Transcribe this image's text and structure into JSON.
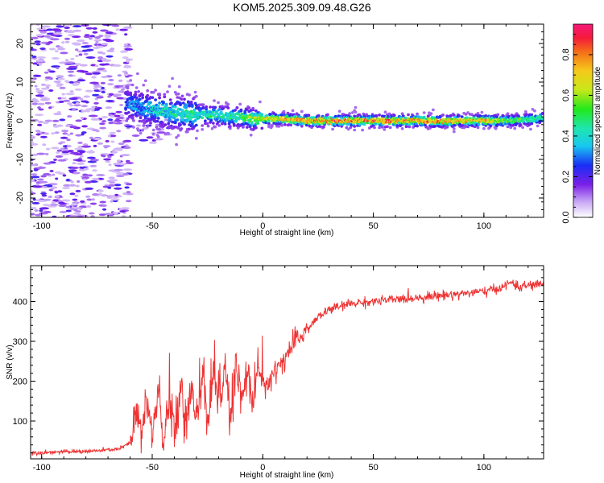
{
  "title": "KOM5.2025.309.09.48.G26",
  "chart_data": [
    {
      "type": "heatmap",
      "xlabel": "Height of straight line (km)",
      "ylabel": "Frequency (Hz)",
      "xlim": [
        -105,
        127
      ],
      "ylim": [
        -25,
        25
      ],
      "xticks": [
        -100,
        -50,
        0,
        50,
        100
      ],
      "yticks": [
        -20,
        -10,
        0,
        10,
        20
      ],
      "xtick_labels": [
        "-100",
        "-50",
        "0",
        "50",
        "100"
      ],
      "ytick_labels": [
        "-20",
        "-10",
        "0",
        "10",
        "20"
      ],
      "ridge": {
        "x": [
          -62,
          -55,
          -50,
          -45,
          -40,
          -35,
          -30,
          -25,
          -20,
          -15,
          -10,
          -5,
          0,
          5,
          10,
          20,
          30,
          40,
          50,
          60,
          70,
          80,
          90,
          100,
          110,
          120,
          127
        ],
        "freq": [
          4.5,
          3.5,
          3.0,
          2.5,
          2.0,
          2.0,
          1.5,
          1.5,
          1.5,
          1.0,
          1.0,
          0.5,
          0.5,
          0.5,
          0.5,
          0.0,
          0.0,
          0.0,
          0.0,
          0.0,
          0.0,
          -0.2,
          0.0,
          0.0,
          0.0,
          0.3,
          0.8
        ],
        "amplitude": [
          0.25,
          0.3,
          0.35,
          0.4,
          0.4,
          0.45,
          0.45,
          0.45,
          0.45,
          0.45,
          0.5,
          0.6,
          0.7,
          0.75,
          0.8,
          0.85,
          0.85,
          0.85,
          0.9,
          0.85,
          0.85,
          0.85,
          0.8,
          0.8,
          0.6,
          0.5,
          0.5
        ]
      },
      "colorbar": {
        "label": "Normalized spectral amplitude",
        "range": [
          0,
          0.95
        ],
        "ticks": [
          0.0,
          0.2,
          0.4,
          0.6,
          0.8
        ],
        "tick_labels": [
          "0.0",
          "0.2",
          "0.4",
          "0.6",
          "0.8"
        ]
      }
    },
    {
      "type": "line",
      "xlabel": "Height of straight line (km)",
      "ylabel": "SNR (v/v)",
      "xlim": [
        -105,
        127
      ],
      "ylim": [
        5,
        490
      ],
      "xticks": [
        -100,
        -50,
        0,
        50,
        100
      ],
      "yticks": [
        100,
        200,
        300,
        400
      ],
      "xtick_labels": [
        "-100",
        "-50",
        "0",
        "50",
        "100"
      ],
      "ytick_labels": [
        "100",
        "200",
        "300",
        "400"
      ],
      "color": "#ee3333",
      "series": [
        {
          "name": "SNR",
          "x": [
            -105,
            -95,
            -85,
            -75,
            -65,
            -60,
            -57,
            -55,
            -52,
            -50,
            -47,
            -45,
            -42,
            -40,
            -37,
            -35,
            -32,
            -30,
            -27,
            -25,
            -22,
            -20,
            -17,
            -15,
            -12,
            -10,
            -7,
            -5,
            -2,
            0,
            5,
            10,
            15,
            20,
            25,
            30,
            40,
            50,
            60,
            70,
            80,
            90,
            100,
            105,
            110,
            113,
            115,
            120,
            127
          ],
          "y": [
            20,
            22,
            23,
            25,
            30,
            45,
            120,
            70,
            150,
            50,
            180,
            40,
            160,
            60,
            210,
            80,
            190,
            120,
            200,
            90,
            230,
            140,
            220,
            100,
            240,
            150,
            230,
            160,
            250,
            180,
            220,
            260,
            300,
            330,
            360,
            380,
            395,
            400,
            405,
            410,
            415,
            420,
            425,
            430,
            440,
            450,
            435,
            440,
            445
          ]
        }
      ]
    }
  ]
}
